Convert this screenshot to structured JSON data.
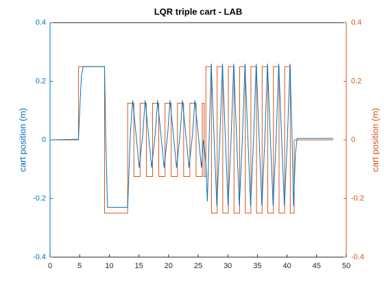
{
  "chart_data": {
    "type": "line",
    "title": "LQR triple cart - LAB",
    "ylabel": "cart position (m)",
    "y2label": "cart position (m)",
    "xlim": [
      0,
      50
    ],
    "xticks": [
      0,
      5,
      10,
      15,
      20,
      25,
      30,
      35,
      40,
      45,
      50
    ],
    "ylim": [
      -0.4,
      0.4
    ],
    "yticks": [
      -0.4,
      -0.2,
      0,
      0.2,
      0.4
    ],
    "y2lim": [
      -0.4,
      0.4
    ],
    "y2ticks": [
      -0.4,
      -0.2,
      0,
      0.2,
      0.4
    ],
    "series": [
      {
        "color": "#0072BD",
        "axis": "y",
        "x": [
          0,
          4.8,
          5.0,
          5.3,
          5.6,
          9.2,
          9.4,
          9.7,
          13.1,
          13.55,
          13.95,
          14.6,
          15.05,
          15.65,
          16.05,
          16.7,
          17.15,
          17.75,
          18.15,
          18.8,
          19.25,
          19.85,
          20.25,
          20.9,
          21.35,
          21.95,
          22.35,
          23.0,
          23.45,
          24.05,
          24.45,
          25.1,
          25.55,
          25.9,
          26.05,
          26.3,
          26.55,
          26.85,
          27.2,
          27.7,
          28.15,
          28.65,
          29.1,
          29.6,
          30.05,
          30.55,
          31.0,
          31.5,
          31.95,
          32.45,
          32.9,
          33.4,
          33.85,
          34.35,
          34.8,
          35.3,
          35.75,
          36.25,
          36.7,
          37.2,
          37.65,
          38.15,
          38.6,
          39.1,
          39.55,
          40.05,
          40.5,
          40.8,
          41.1,
          41.4,
          41.7,
          47.8
        ],
        "values": [
          0,
          0.002,
          0.1,
          0.22,
          0.25,
          0.25,
          0,
          -0.23,
          -0.23,
          0.02,
          0.135,
          0,
          -0.095,
          0.02,
          0.135,
          0,
          -0.095,
          0.02,
          0.135,
          0,
          -0.095,
          0.02,
          0.135,
          0,
          -0.095,
          0.02,
          0.135,
          0,
          -0.095,
          0.02,
          0.135,
          0,
          -0.095,
          0,
          -0.03,
          -0.08,
          -0.21,
          0,
          0.26,
          0,
          -0.225,
          0,
          0.26,
          0,
          -0.225,
          0,
          0.26,
          0,
          -0.225,
          0,
          0.26,
          0,
          -0.225,
          0,
          0.26,
          0,
          -0.225,
          0,
          0.26,
          0,
          -0.225,
          0,
          0.26,
          0,
          -0.225,
          0,
          0.26,
          0.05,
          -0.225,
          -0.05,
          0.005,
          0.005
        ]
      },
      {
        "color": "#D95319",
        "axis": "y2",
        "x": [
          0,
          4.8,
          4.8,
          9.2,
          9.2,
          13.1,
          13.1,
          14.15,
          14.15,
          15.2,
          15.2,
          16.25,
          16.25,
          17.3,
          17.3,
          18.35,
          18.35,
          19.4,
          19.4,
          20.45,
          20.45,
          21.5,
          21.5,
          22.55,
          22.55,
          23.6,
          23.6,
          24.65,
          24.65,
          25.7,
          25.7,
          26.0,
          26.0,
          26.3,
          26.3,
          27.25,
          27.25,
          28.2,
          28.2,
          29.15,
          29.15,
          30.1,
          30.1,
          31.05,
          31.05,
          32.0,
          32.0,
          32.95,
          32.95,
          33.9,
          33.9,
          34.85,
          34.85,
          35.8,
          35.8,
          36.75,
          36.75,
          37.7,
          37.7,
          38.65,
          38.65,
          39.6,
          39.6,
          40.55,
          40.55,
          41.2,
          41.2,
          47.8
        ],
        "values": [
          0,
          0,
          0.25,
          0.25,
          -0.25,
          -0.25,
          0.125,
          0.125,
          -0.125,
          -0.125,
          0.125,
          0.125,
          -0.125,
          -0.125,
          0.125,
          0.125,
          -0.125,
          -0.125,
          0.125,
          0.125,
          -0.125,
          -0.125,
          0.125,
          0.125,
          -0.125,
          -0.125,
          0.125,
          0.125,
          -0.125,
          -0.125,
          0.125,
          0.125,
          -0.125,
          -0.125,
          0.25,
          0.25,
          -0.25,
          -0.25,
          0.25,
          0.25,
          -0.25,
          -0.25,
          0.25,
          0.25,
          -0.25,
          -0.25,
          0.25,
          0.25,
          -0.25,
          -0.25,
          0.25,
          0.25,
          -0.25,
          -0.25,
          0.25,
          0.25,
          -0.25,
          -0.25,
          0.25,
          0.25,
          -0.25,
          -0.25,
          0.25,
          0.25,
          -0.25,
          -0.25,
          0,
          0
        ]
      }
    ]
  }
}
